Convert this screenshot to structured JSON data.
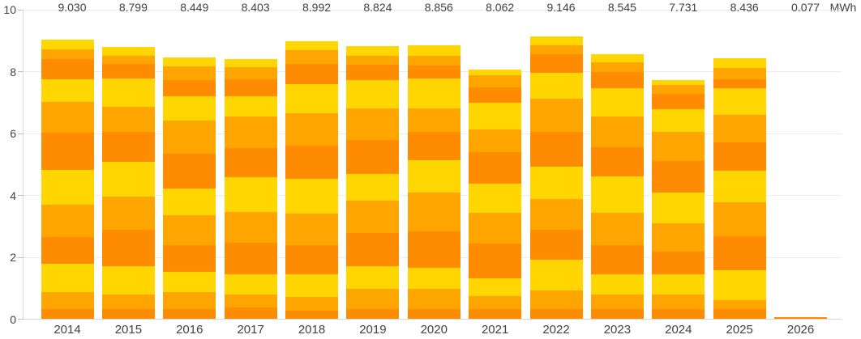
{
  "chart_data": {
    "type": "bar",
    "stacked": true,
    "unit_label": "MWh",
    "ylim": [
      0,
      10
    ],
    "y_tick_labels": [
      "0",
      "2",
      "4",
      "6",
      "8",
      "10"
    ],
    "grid": "horizontal light-gray lines at each y tick",
    "legend": "none",
    "categories": [
      "2014",
      "2015",
      "2016",
      "2017",
      "2018",
      "2019",
      "2020",
      "2021",
      "2022",
      "2023",
      "2024",
      "2025",
      "2026"
    ],
    "totals_labels": [
      "9.030",
      "8.799",
      "8.449",
      "8.403",
      "8.992",
      "8.824",
      "8.856",
      "8.062",
      "9.146",
      "8.545",
      "7.731",
      "8.436",
      "0.077"
    ],
    "segment_note": "each year bar is a stack of 12 segments (bottom to top), colors cycling dark-orange, orange, yellow; values estimated from gridlines, each stack sums to its printed total",
    "segment_color_cycle": [
      "#FF8C00",
      "#FFA500",
      "#FFD600"
    ],
    "values": [
      [
        0.32,
        0.56,
        0.91,
        0.87,
        1.04,
        1.13,
        1.19,
        0.99,
        0.75,
        0.65,
        0.3,
        0.32
      ],
      [
        0.32,
        0.48,
        0.91,
        1.17,
        1.08,
        1.13,
        0.95,
        0.82,
        0.91,
        0.48,
        0.26,
        0.29
      ],
      [
        0.32,
        0.56,
        0.65,
        0.87,
        0.95,
        0.87,
        1.13,
        1.08,
        0.78,
        0.52,
        0.43,
        0.29
      ],
      [
        0.38,
        0.43,
        0.65,
        1.0,
        1.0,
        1.13,
        0.95,
        1.0,
        0.65,
        0.56,
        0.39,
        0.26
      ],
      [
        0.28,
        0.43,
        0.74,
        0.95,
        1.0,
        1.13,
        1.08,
        1.04,
        0.95,
        0.65,
        0.43,
        0.31
      ],
      [
        0.32,
        0.65,
        0.74,
        1.08,
        1.04,
        0.87,
        1.08,
        1.04,
        0.91,
        0.48,
        0.3,
        0.31
      ],
      [
        0.32,
        0.65,
        0.69,
        1.17,
        1.26,
        1.04,
        0.91,
        0.78,
        0.95,
        0.43,
        0.3,
        0.36
      ],
      [
        0.32,
        0.43,
        0.56,
        1.13,
        1.0,
        0.95,
        1.0,
        0.74,
        0.87,
        0.48,
        0.39,
        0.19
      ],
      [
        0.32,
        0.61,
        1.0,
        0.95,
        1.0,
        1.04,
        1.13,
        1.08,
        0.82,
        0.61,
        0.3,
        0.29
      ],
      [
        0.32,
        0.48,
        0.65,
        0.95,
        1.04,
        1.17,
        0.95,
        1.0,
        0.91,
        0.52,
        0.3,
        0.26
      ],
      [
        0.32,
        0.48,
        0.65,
        0.74,
        0.91,
        1.0,
        1.0,
        0.95,
        0.74,
        0.48,
        0.3,
        0.16
      ],
      [
        0.32,
        0.3,
        0.95,
        1.12,
        1.08,
        1.04,
        0.91,
        0.87,
        0.87,
        0.3,
        0.35,
        0.33
      ],
      [
        0.077
      ]
    ]
  },
  "colors": {
    "bar_yellow": "#FFD600",
    "bar_orange": "#FFA500",
    "bar_dark_orange": "#FF8C00",
    "gridline": "#EBEBEB",
    "axis_line": "#D9D9D9",
    "text": "#414141",
    "background": "#FFFFFF"
  }
}
